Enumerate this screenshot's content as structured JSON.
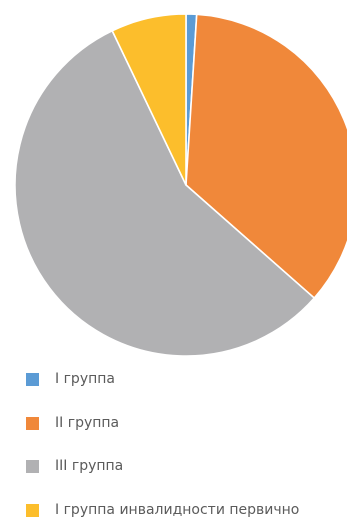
{
  "chart_data": {
    "type": "pie",
    "title": "",
    "slices": [
      {
        "label": "I группа",
        "value": 1.0,
        "color": "#5b9bd5"
      },
      {
        "label": "II группа",
        "value": 35.5,
        "color": "#f0883a"
      },
      {
        "label": "III группа",
        "value": 56.4,
        "color": "#b1b1b3"
      },
      {
        "label": "I группа инвалидности первично",
        "value": 7.1,
        "color": "#fcbe2c"
      }
    ],
    "start_angle_deg": 0,
    "direction": "clockwise",
    "slice_separator_color": "#ffffff",
    "legend": {
      "position": "bottom-left",
      "orientation": "vertical"
    }
  }
}
